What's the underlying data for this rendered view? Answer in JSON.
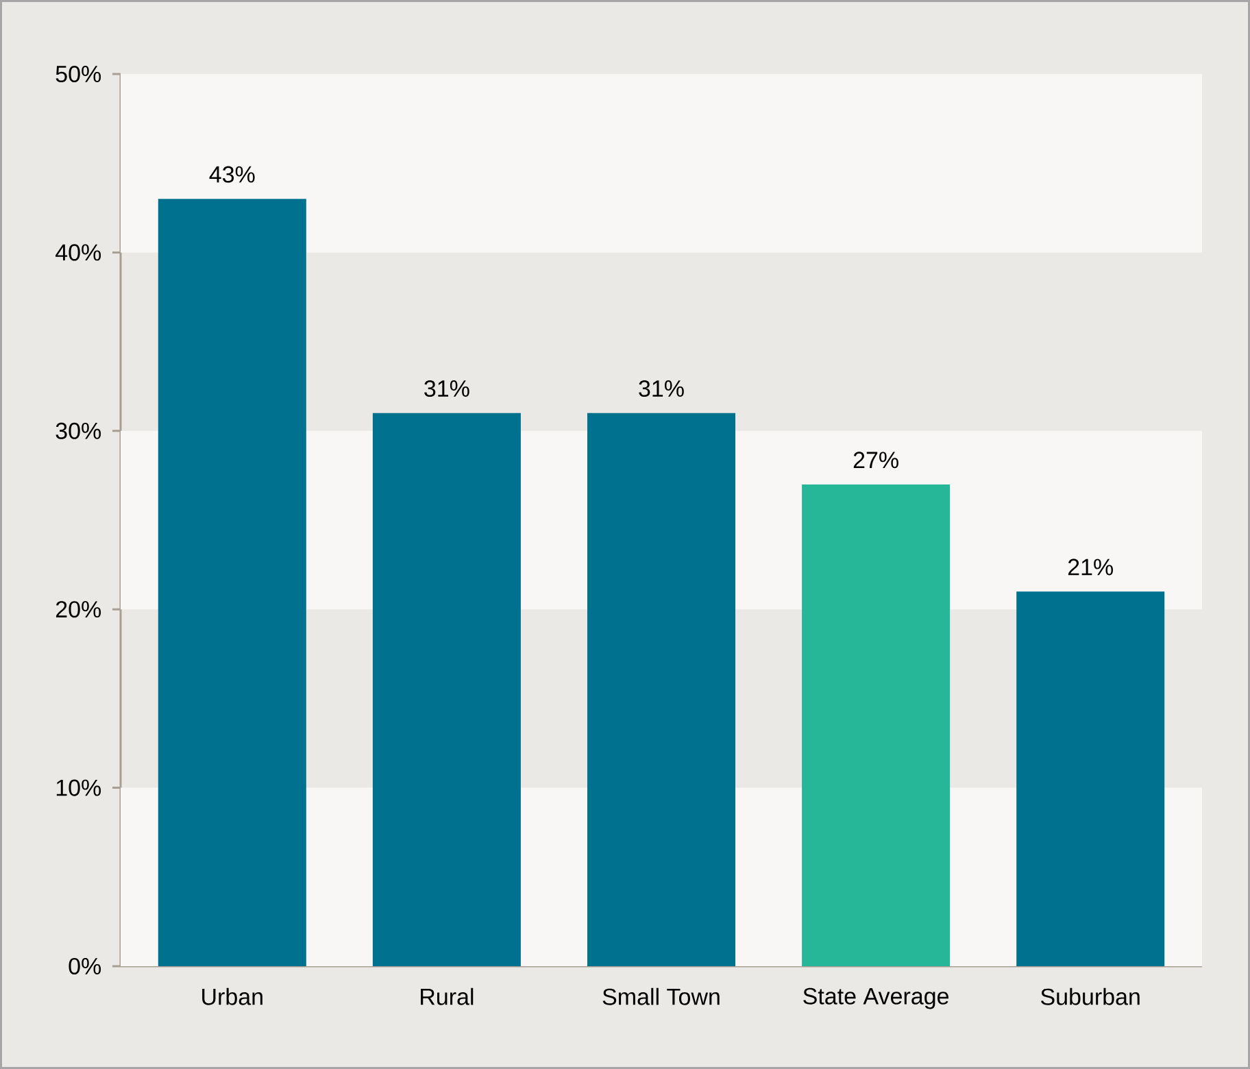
{
  "chart_data": {
    "type": "bar",
    "categories": [
      "Urban",
      "Rural",
      "Small Town",
      "State Average",
      "Suburban"
    ],
    "values": [
      43,
      31,
      31,
      27,
      21
    ],
    "colors": [
      "#00728f",
      "#00728f",
      "#00728f",
      "#25b797",
      "#00728f"
    ],
    "value_labels": [
      "43%",
      "31%",
      "31%",
      "27%",
      "21%"
    ],
    "ylim": [
      0,
      50
    ],
    "yticks": [
      {
        "value": 0,
        "label": "0%"
      },
      {
        "value": 10,
        "label": "10%"
      },
      {
        "value": 20,
        "label": "20%"
      },
      {
        "value": 30,
        "label": "30%"
      },
      {
        "value": 40,
        "label": "40%"
      },
      {
        "value": 50,
        "label": "50%"
      }
    ],
    "grid": false
  }
}
